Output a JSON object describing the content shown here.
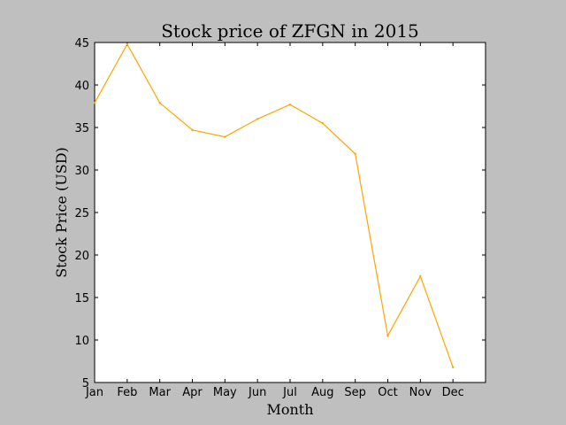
{
  "chart_data": {
    "type": "line",
    "title": "Stock price of ZFGN in 2015",
    "xlabel": "Month",
    "ylabel": "Stock Price (USD)",
    "categories": [
      "Jan",
      "Feb",
      "Mar",
      "Apr",
      "May",
      "Jun",
      "Jul",
      "Aug",
      "Sep",
      "Oct",
      "Nov",
      "Dec"
    ],
    "yticks": [
      "5",
      "10",
      "15",
      "20",
      "25",
      "30",
      "35",
      "40",
      "45"
    ],
    "series": [
      {
        "values": [
          37.9,
          44.8,
          37.9,
          34.7,
          33.9,
          36.0,
          37.7,
          35.5,
          31.9,
          10.5,
          17.5,
          6.8
        ],
        "color": "#ffa500"
      }
    ],
    "ylim": [
      5,
      45
    ],
    "xlim": [
      0,
      12
    ],
    "grid": false,
    "legend": "none",
    "background": "#bfbfbf",
    "plot_background": "#ffffff"
  }
}
